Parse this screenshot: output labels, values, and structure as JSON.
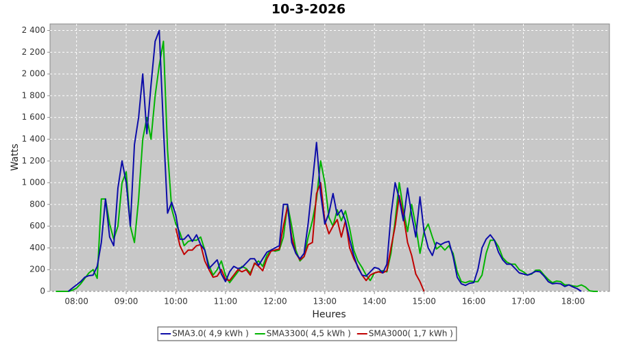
{
  "chart_data": {
    "type": "line",
    "title": "10-3-2026",
    "xlabel": "Heures",
    "ylabel": "Watts",
    "x": [
      "07:35",
      "07:40",
      "07:45",
      "07:50",
      "07:55",
      "08:00",
      "08:05",
      "08:10",
      "08:15",
      "08:20",
      "08:25",
      "08:30",
      "08:35",
      "08:40",
      "08:45",
      "08:50",
      "08:55",
      "09:00",
      "09:05",
      "09:10",
      "09:15",
      "09:20",
      "09:25",
      "09:30",
      "09:35",
      "09:40",
      "09:45",
      "09:50",
      "09:55",
      "10:00",
      "10:05",
      "10:10",
      "10:15",
      "10:20",
      "10:25",
      "10:30",
      "10:35",
      "10:40",
      "10:45",
      "10:50",
      "10:55",
      "11:00",
      "11:05",
      "11:10",
      "11:15",
      "11:20",
      "11:25",
      "11:30",
      "11:35",
      "11:40",
      "11:45",
      "11:50",
      "11:55",
      "12:00",
      "12:05",
      "12:10",
      "12:15",
      "12:20",
      "12:25",
      "12:30",
      "12:35",
      "12:40",
      "12:45",
      "12:50",
      "12:55",
      "13:00",
      "13:05",
      "13:10",
      "13:15",
      "13:20",
      "13:25",
      "13:30",
      "13:35",
      "13:40",
      "13:45",
      "13:50",
      "13:55",
      "14:00",
      "14:05",
      "14:10",
      "14:15",
      "14:20",
      "14:25",
      "14:30",
      "14:35",
      "14:40",
      "14:45",
      "14:50",
      "14:55",
      "15:00",
      "15:05",
      "15:10",
      "15:15",
      "15:20",
      "15:25",
      "15:30",
      "15:35",
      "15:40",
      "15:45",
      "15:50",
      "15:55",
      "16:00",
      "16:05",
      "16:10",
      "16:15",
      "16:20",
      "16:25",
      "16:30",
      "16:35",
      "16:40",
      "16:45",
      "16:50",
      "16:55",
      "17:00",
      "17:05",
      "17:10",
      "17:15",
      "17:20",
      "17:25",
      "17:30",
      "17:35",
      "17:40",
      "17:45",
      "17:50",
      "17:55",
      "18:00",
      "18:05",
      "18:10",
      "18:15",
      "18:20",
      "18:25",
      "18:30"
    ],
    "series": [
      {
        "name": "SMA3.0( 4,9 kWh )",
        "color": "#0c0ca8",
        "values": [
          null,
          null,
          null,
          0,
          30,
          60,
          90,
          130,
          145,
          150,
          230,
          450,
          850,
          500,
          420,
          950,
          1200,
          1000,
          600,
          1350,
          1600,
          2000,
          1450,
          1900,
          2300,
          2400,
          1500,
          720,
          820,
          700,
          480,
          480,
          520,
          460,
          520,
          430,
          380,
          210,
          250,
          290,
          160,
          90,
          180,
          230,
          210,
          220,
          260,
          300,
          300,
          240,
          300,
          360,
          380,
          400,
          420,
          800,
          800,
          450,
          350,
          300,
          350,
          630,
          1000,
          1370,
          900,
          620,
          720,
          900,
          700,
          750,
          650,
          480,
          330,
          220,
          150,
          140,
          180,
          220,
          210,
          170,
          250,
          700,
          1000,
          850,
          650,
          950,
          700,
          500,
          870,
          550,
          400,
          330,
          450,
          430,
          450,
          460,
          320,
          130,
          70,
          55,
          75,
          80,
          200,
          400,
          480,
          520,
          470,
          360,
          290,
          250,
          250,
          210,
          170,
          160,
          150,
          165,
          185,
          180,
          140,
          90,
          70,
          75,
          70,
          45,
          60,
          40,
          25,
          0,
          null,
          null,
          null,
          null
        ]
      },
      {
        "name": "SMA3300( 4,5 kWh )",
        "color": "#00b400",
        "values": [
          0,
          0,
          0,
          0,
          10,
          30,
          70,
          120,
          170,
          200,
          120,
          850,
          850,
          620,
          480,
          600,
          1000,
          1100,
          600,
          450,
          850,
          1400,
          1600,
          1400,
          1800,
          2080,
          2300,
          1300,
          760,
          620,
          540,
          420,
          460,
          470,
          470,
          500,
          380,
          240,
          150,
          200,
          280,
          150,
          80,
          130,
          180,
          230,
          210,
          170,
          250,
          280,
          230,
          330,
          380,
          370,
          380,
          500,
          800,
          600,
          380,
          280,
          320,
          500,
          650,
          850,
          1200,
          1000,
          680,
          600,
          750,
          650,
          740,
          580,
          380,
          280,
          220,
          150,
          100,
          170,
          180,
          190,
          180,
          350,
          650,
          1000,
          750,
          550,
          800,
          600,
          350,
          550,
          620,
          500,
          390,
          420,
          380,
          420,
          350,
          180,
          90,
          80,
          95,
          90,
          90,
          150,
          350,
          470,
          470,
          410,
          310,
          270,
          250,
          250,
          200,
          180,
          150,
          160,
          195,
          195,
          150,
          110,
          80,
          95,
          90,
          60,
          60,
          50,
          45,
          60,
          40,
          5,
          0,
          0
        ]
      },
      {
        "name": "SMA3000( 1,7 kWh )",
        "color": "#c00000",
        "values": [
          null,
          null,
          null,
          null,
          null,
          null,
          null,
          null,
          null,
          null,
          null,
          null,
          null,
          null,
          null,
          null,
          null,
          null,
          null,
          null,
          null,
          null,
          null,
          null,
          null,
          null,
          null,
          null,
          null,
          580,
          420,
          340,
          380,
          380,
          420,
          430,
          280,
          200,
          130,
          140,
          200,
          110,
          100,
          150,
          200,
          180,
          200,
          150,
          260,
          230,
          190,
          300,
          370,
          380,
          390,
          600,
          780,
          500,
          350,
          290,
          320,
          430,
          450,
          900,
          1000,
          650,
          530,
          600,
          660,
          500,
          650,
          400,
          300,
          230,
          150,
          100,
          150,
          170,
          180,
          170,
          190,
          400,
          600,
          880,
          700,
          450,
          330,
          160,
          90,
          0,
          null,
          null,
          null,
          null,
          null,
          null,
          null,
          null,
          null,
          null,
          null,
          null,
          null,
          null,
          null,
          null,
          null,
          null,
          null,
          null,
          null,
          null,
          null,
          null,
          null,
          null,
          null,
          null,
          null,
          null,
          null,
          null,
          null,
          null,
          null,
          null,
          null,
          null,
          null,
          null,
          null,
          null
        ]
      }
    ],
    "xlim": [
      "07:28",
      "18:44"
    ],
    "xticks": [
      "08:00",
      "09:00",
      "10:00",
      "11:00",
      "12:00",
      "13:00",
      "14:00",
      "15:00",
      "16:00",
      "17:00",
      "18:00"
    ],
    "ylim": [
      0,
      2460
    ],
    "yticks": [
      0,
      200,
      400,
      600,
      800,
      {
        "value": 1000,
        "label": "1 000"
      },
      {
        "value": 1200,
        "label": "1 200"
      },
      {
        "value": 1400,
        "label": "1 400"
      },
      {
        "value": 1600,
        "label": "1 600"
      },
      {
        "value": 1800,
        "label": "1 800"
      },
      {
        "value": 2000,
        "label": "2 000"
      },
      {
        "value": 2200,
        "label": "2 200"
      },
      {
        "value": 2400,
        "label": "2 400"
      }
    ],
    "grid": true,
    "legend": "bottom"
  }
}
